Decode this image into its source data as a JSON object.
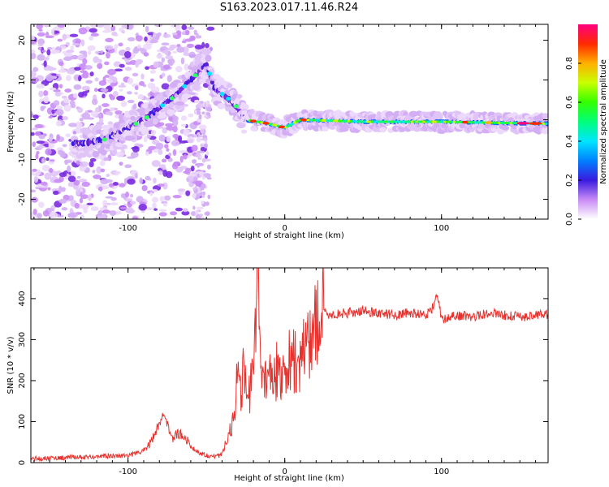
{
  "title": "S163.2023.017.11.46.R24",
  "colors": {
    "snr_line": "#e8302c",
    "axis": "#000000",
    "spectrum_low": "#c98bf5",
    "spectrum_mid": "#5a1fd6"
  },
  "chart_data": [
    {
      "type": "heatmap",
      "name": "spectrogram",
      "xlabel": "Height of straight line (km)",
      "ylabel": "Frequency (Hz)",
      "xlim": [
        -162,
        168
      ],
      "ylim": [
        -25,
        24
      ],
      "xticks": [
        -100,
        0,
        100
      ],
      "xtick_labels": [
        "-100",
        "0",
        "100"
      ],
      "yticks": [
        -20,
        -10,
        0,
        10,
        20
      ],
      "ytick_labels": [
        "-20",
        "-10",
        "0",
        "10",
        "20"
      ],
      "colorbar": {
        "label": "Normalized spectral amplitude",
        "range": [
          0,
          1
        ],
        "ticks": [
          0.0,
          0.2,
          0.4,
          0.6,
          0.8
        ],
        "tick_labels": [
          "0.0",
          "0.2",
          "0.4",
          "0.6",
          "0.8"
        ],
        "colormap": "gist_rainbow_r"
      },
      "ridge": [
        {
          "x": -130,
          "y": -6
        },
        {
          "x": -115,
          "y": -5
        },
        {
          "x": -100,
          "y": -2
        },
        {
          "x": -90,
          "y": 0
        },
        {
          "x": -80,
          "y": 3
        },
        {
          "x": -70,
          "y": 6
        },
        {
          "x": -60,
          "y": 10
        },
        {
          "x": -50,
          "y": 14
        },
        {
          "x": -45,
          "y": 8
        },
        {
          "x": -35,
          "y": 5
        },
        {
          "x": -30,
          "y": 3
        },
        {
          "x": -25,
          "y": 0
        },
        {
          "x": -10,
          "y": -1
        },
        {
          "x": 0,
          "y": -2
        },
        {
          "x": 10,
          "y": 0
        },
        {
          "x": 50,
          "y": -0.5
        },
        {
          "x": 100,
          "y": -0.5
        },
        {
          "x": 168,
          "y": -1
        }
      ]
    },
    {
      "type": "line",
      "name": "snr",
      "xlabel": "Height of straight line (km)",
      "ylabel": "SNR (10 * v/v)",
      "xlim": [
        -162,
        168
      ],
      "ylim": [
        0,
        475
      ],
      "xticks": [
        -100,
        0,
        100
      ],
      "xtick_labels": [
        "-100",
        "0",
        "100"
      ],
      "yticks": [
        0,
        100,
        200,
        300,
        400
      ],
      "ytick_labels": [
        "0",
        "100",
        "200",
        "300",
        "400"
      ],
      "series": [
        {
          "x": [
            -162,
            -140,
            -120,
            -100,
            -92,
            -86,
            -82,
            -78,
            -75,
            -72,
            -68,
            -64,
            -60,
            -55,
            -50,
            -45,
            -40,
            -34,
            -30,
            -28,
            -26,
            -24,
            -20,
            -17,
            -15,
            -12,
            -8,
            -5,
            0,
            5,
            10,
            15,
            20,
            25,
            30,
            40,
            50,
            60,
            70,
            80,
            90,
            95,
            97,
            100,
            110,
            120,
            130,
            140,
            150,
            160,
            168
          ],
          "y": [
            10,
            12,
            15,
            18,
            25,
            45,
            80,
            115,
            95,
            60,
            70,
            65,
            40,
            25,
            18,
            15,
            20,
            90,
            210,
            150,
            230,
            160,
            200,
            475,
            200,
            230,
            200,
            220,
            235,
            250,
            240,
            300,
            340,
            365,
            360,
            365,
            370,
            365,
            360,
            365,
            360,
            380,
            410,
            350,
            360,
            355,
            365,
            360,
            355,
            360,
            362
          ]
        }
      ]
    }
  ]
}
